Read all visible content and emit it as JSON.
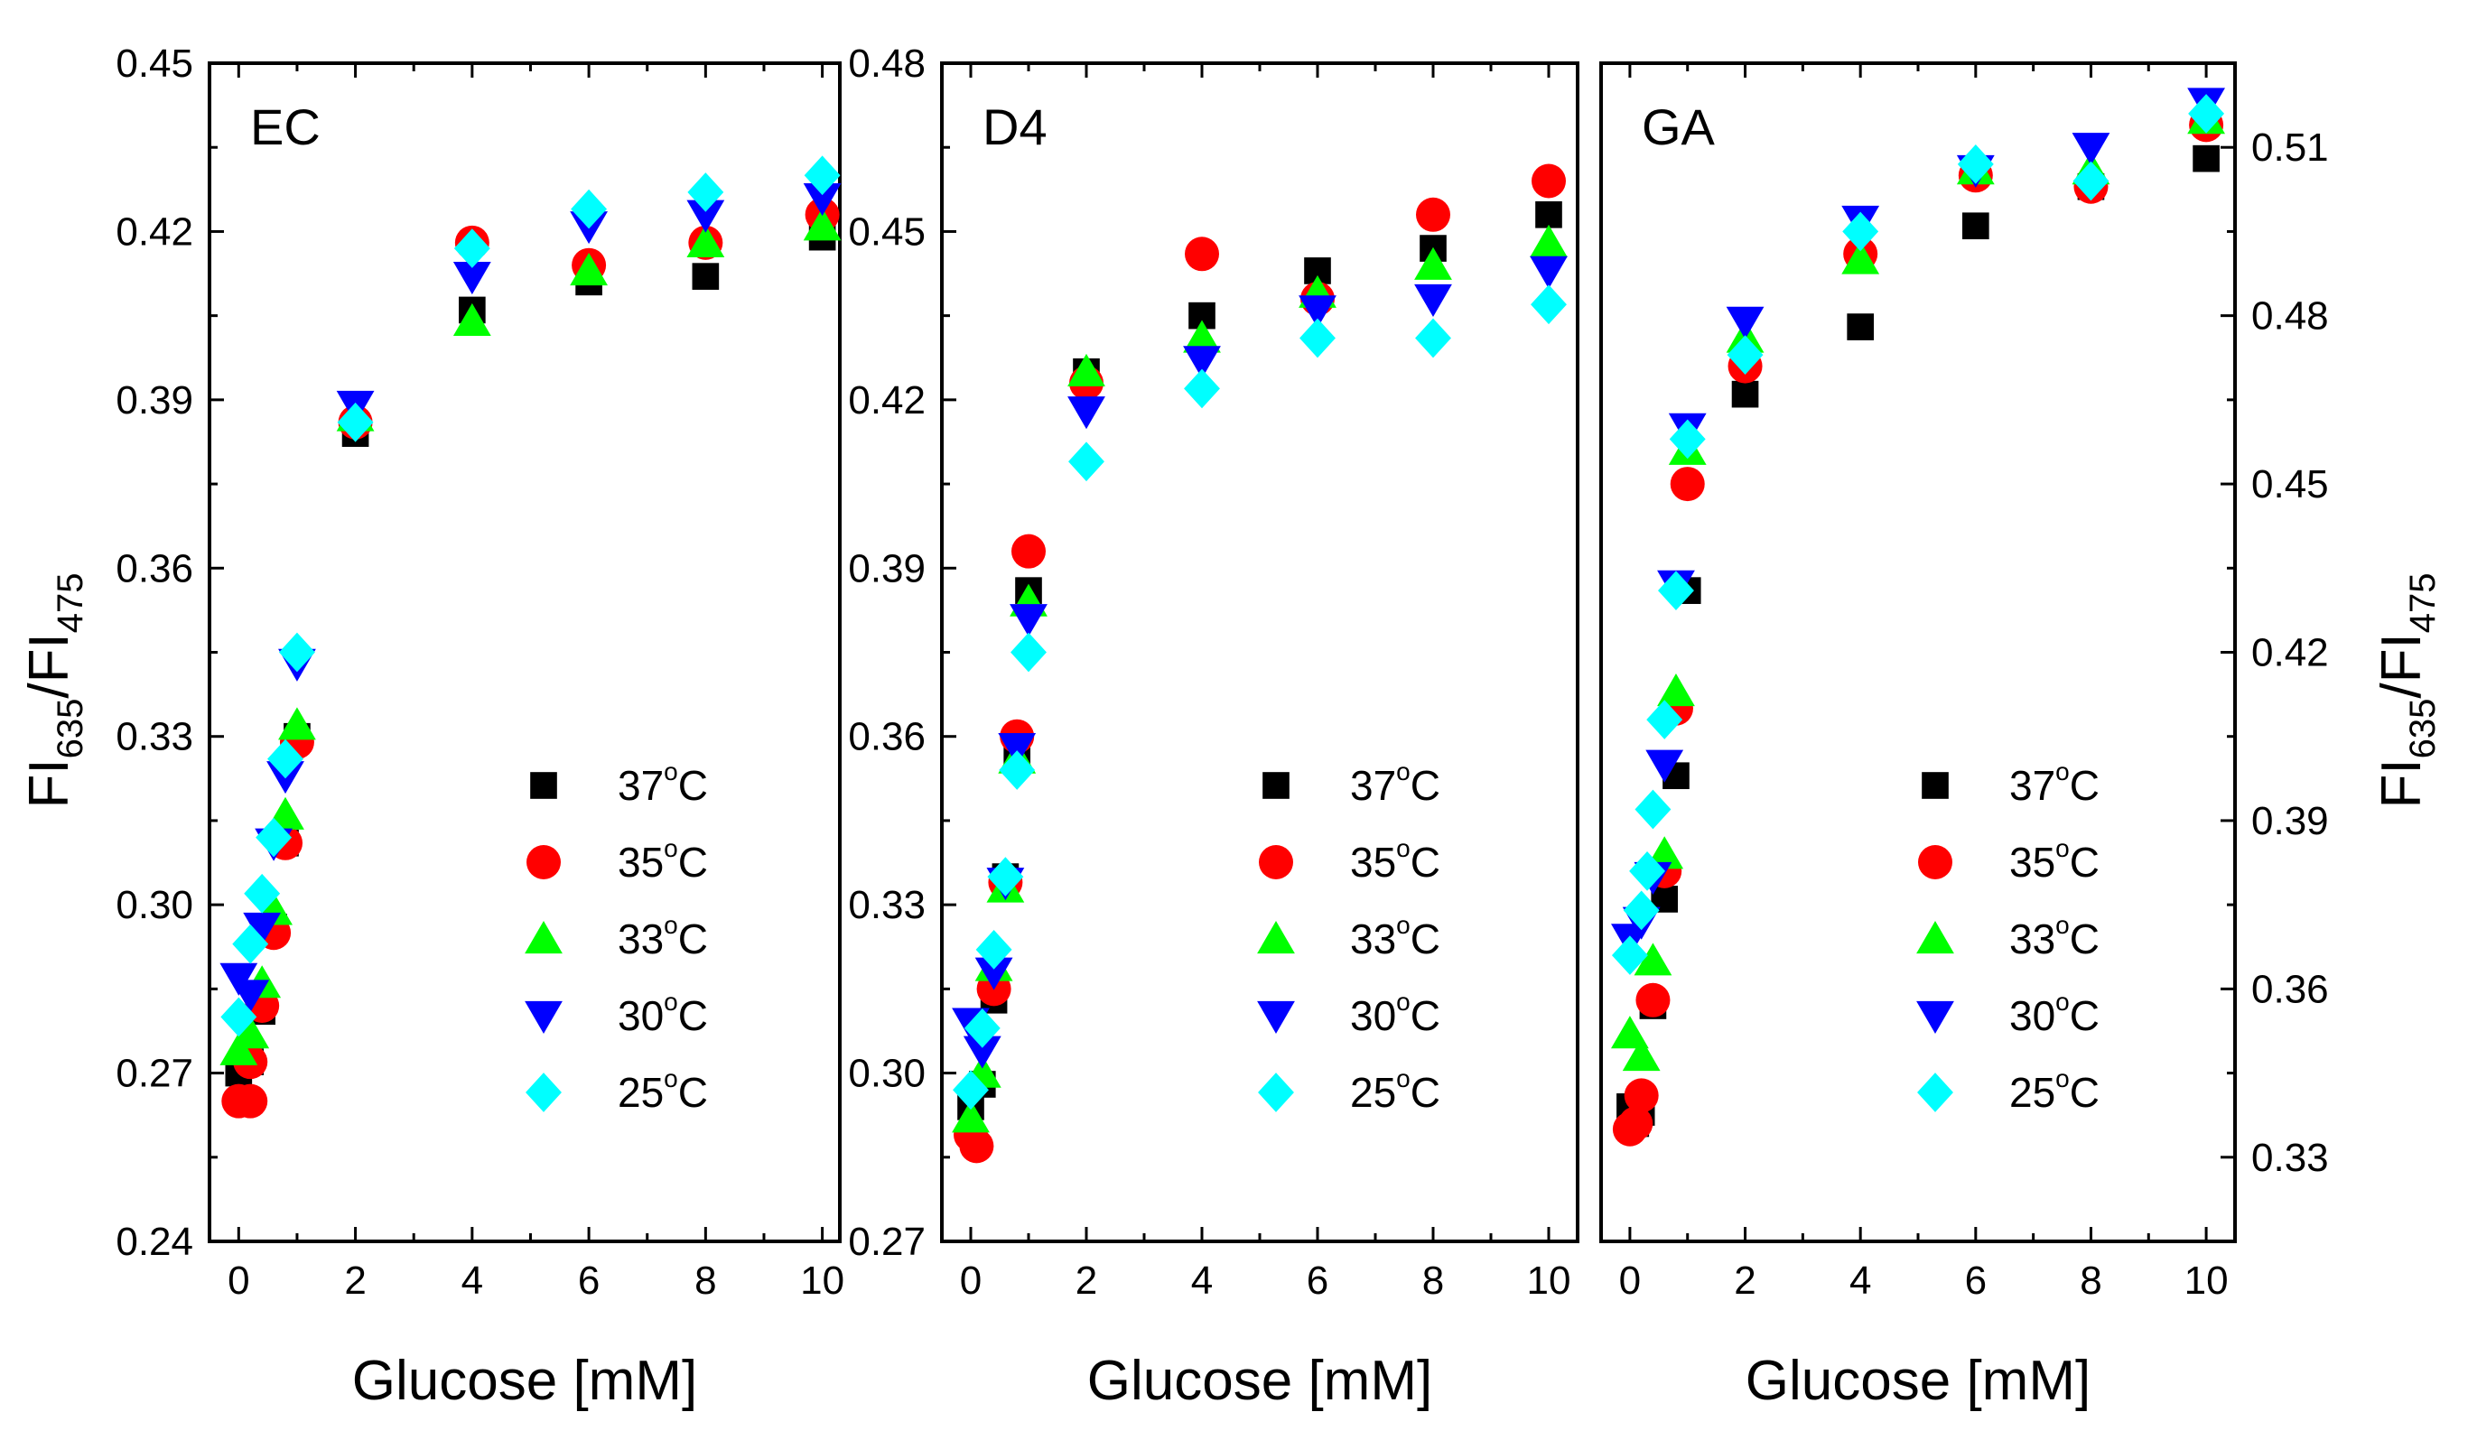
{
  "figure": {
    "xlabel": "Glucose [mM]",
    "ylabel": {
      "main": "FI",
      "sub1": "635",
      "slash": "/FI",
      "sub2": "475"
    }
  },
  "series_styles": [
    {
      "name": "37°C",
      "label_main": "37",
      "label_deg": "o",
      "label_unit": "C",
      "marker": "square",
      "color": "#000000"
    },
    {
      "name": "35°C",
      "label_main": "35",
      "label_deg": "o",
      "label_unit": "C",
      "marker": "circle",
      "color": "#ff0000"
    },
    {
      "name": "33°C",
      "label_main": "33",
      "label_deg": "o",
      "label_unit": "C",
      "marker": "triangle-up",
      "color": "#00ff00"
    },
    {
      "name": "30°C",
      "label_main": "30",
      "label_deg": "o",
      "label_unit": "C",
      "marker": "triangle-down",
      "color": "#0000ff"
    },
    {
      "name": "25°C",
      "label_main": "25",
      "label_deg": "o",
      "label_unit": "C",
      "marker": "diamond",
      "color": "#00ffff"
    }
  ],
  "chart_data": [
    {
      "type": "scatter",
      "title": "EC",
      "xlabel": "Glucose [mM]",
      "ylabel": "FI635/FI475",
      "xlim": [
        -0.5,
        10.3
      ],
      "ylim": [
        0.24,
        0.45
      ],
      "xticks": [
        0,
        2,
        4,
        6,
        8,
        10
      ],
      "xtick_labels": [
        "0",
        "2",
        "4",
        "6",
        "8",
        "10"
      ],
      "yticks": [
        0.24,
        0.27,
        0.3,
        0.33,
        0.36,
        0.39,
        0.42,
        0.45
      ],
      "ytick_labels": [
        "0.24",
        "0.27",
        "0.30",
        "0.33",
        "0.36",
        "0.39",
        "0.42",
        "0.45"
      ],
      "ytick_side": "left",
      "legend_position": "center-right",
      "series": [
        {
          "name": "37°C",
          "points": [
            [
              0,
              0.27
            ],
            [
              0.2,
              0.272
            ],
            [
              0.4,
              0.281
            ],
            [
              0.6,
              0.296
            ],
            [
              0.8,
              0.311
            ],
            [
              1,
              0.33
            ],
            [
              2,
              0.384
            ],
            [
              4,
              0.406
            ],
            [
              6,
              0.411
            ],
            [
              8,
              0.412
            ],
            [
              10,
              0.419
            ]
          ]
        },
        {
          "name": "35°C",
          "points": [
            [
              0,
              0.265
            ],
            [
              0.2,
              0.265
            ],
            [
              0.2,
              0.272
            ],
            [
              0.4,
              0.282
            ],
            [
              0.6,
              0.295
            ],
            [
              0.8,
              0.311
            ],
            [
              1,
              0.329
            ],
            [
              2,
              0.386
            ],
            [
              4,
              0.418
            ],
            [
              6,
              0.414
            ],
            [
              8,
              0.418
            ],
            [
              10,
              0.423
            ]
          ]
        },
        {
          "name": "33°C",
          "points": [
            [
              0,
              0.274
            ],
            [
              0.2,
              0.277
            ],
            [
              0.4,
              0.286
            ],
            [
              0.6,
              0.299
            ],
            [
              0.8,
              0.316
            ],
            [
              1,
              0.332
            ],
            [
              2,
              0.387
            ],
            [
              4,
              0.404
            ],
            [
              6,
              0.413
            ],
            [
              8,
              0.418
            ],
            [
              10,
              0.421
            ]
          ]
        },
        {
          "name": "30°C",
          "points": [
            [
              0,
              0.287
            ],
            [
              0.2,
              0.284
            ],
            [
              0.4,
              0.296
            ],
            [
              0.6,
              0.311
            ],
            [
              0.8,
              0.323
            ],
            [
              1,
              0.343
            ],
            [
              2,
              0.389
            ],
            [
              4,
              0.412
            ],
            [
              6,
              0.421
            ],
            [
              8,
              0.423
            ],
            [
              10,
              0.426
            ]
          ]
        },
        {
          "name": "25°C",
          "points": [
            [
              0,
              0.28
            ],
            [
              0.2,
              0.293
            ],
            [
              0.4,
              0.302
            ],
            [
              0.6,
              0.312
            ],
            [
              0.8,
              0.326
            ],
            [
              1,
              0.345
            ],
            [
              2,
              0.386
            ],
            [
              4,
              0.417
            ],
            [
              6,
              0.424
            ],
            [
              8,
              0.427
            ],
            [
              10,
              0.43
            ]
          ]
        }
      ]
    },
    {
      "type": "scatter",
      "title": "D4",
      "xlabel": "Glucose [mM]",
      "ylabel": "FI635/FI475",
      "xlim": [
        -0.5,
        10.5
      ],
      "ylim": [
        0.27,
        0.48
      ],
      "xticks": [
        0,
        2,
        4,
        6,
        8,
        10
      ],
      "xtick_labels": [
        "0",
        "2",
        "4",
        "6",
        "8",
        "10"
      ],
      "yticks": [
        0.27,
        0.3,
        0.33,
        0.36,
        0.39,
        0.42,
        0.45,
        0.48
      ],
      "ytick_labels": [
        "0.27",
        "0.30",
        "0.33",
        "0.36",
        "0.39",
        "0.42",
        "0.45",
        "0.48"
      ],
      "ytick_side": "left",
      "legend_position": "center-right",
      "series": [
        {
          "name": "37°C",
          "points": [
            [
              0,
              0.294
            ],
            [
              0.2,
              0.298
            ],
            [
              0.4,
              0.313
            ],
            [
              0.6,
              0.335
            ],
            [
              0.8,
              0.356
            ],
            [
              1,
              0.386
            ],
            [
              2,
              0.425
            ],
            [
              4,
              0.435
            ],
            [
              6,
              0.443
            ],
            [
              8,
              0.447
            ],
            [
              10,
              0.453
            ]
          ]
        },
        {
          "name": "35°C",
          "points": [
            [
              0,
              0.289
            ],
            [
              0.1,
              0.287
            ],
            [
              0.4,
              0.315
            ],
            [
              0.6,
              0.334
            ],
            [
              0.8,
              0.36
            ],
            [
              1,
              0.393
            ],
            [
              2,
              0.423
            ],
            [
              4,
              0.446
            ],
            [
              6,
              0.438
            ],
            [
              8,
              0.453
            ],
            [
              10,
              0.459
            ]
          ]
        },
        {
          "name": "33°C",
          "points": [
            [
              0,
              0.292
            ],
            [
              0.2,
              0.3
            ],
            [
              0.4,
              0.319
            ],
            [
              0.6,
              0.333
            ],
            [
              0.8,
              0.356
            ],
            [
              1,
              0.384
            ],
            [
              2,
              0.425
            ],
            [
              4,
              0.431
            ],
            [
              6,
              0.439
            ],
            [
              8,
              0.444
            ],
            [
              10,
              0.448
            ]
          ]
        },
        {
          "name": "30°C",
          "points": [
            [
              0,
              0.309
            ],
            [
              0.2,
              0.304
            ],
            [
              0.4,
              0.318
            ],
            [
              0.6,
              0.334
            ],
            [
              0.8,
              0.358
            ],
            [
              1,
              0.381
            ],
            [
              2,
              0.418
            ],
            [
              4,
              0.427
            ],
            [
              6,
              0.436
            ],
            [
              8,
              0.438
            ],
            [
              10,
              0.443
            ]
          ]
        },
        {
          "name": "25°C",
          "points": [
            [
              0,
              0.297
            ],
            [
              0.2,
              0.308
            ],
            [
              0.4,
              0.322
            ],
            [
              0.6,
              0.335
            ],
            [
              0.8,
              0.354
            ],
            [
              1,
              0.375
            ],
            [
              2,
              0.409
            ],
            [
              4,
              0.422
            ],
            [
              6,
              0.431
            ],
            [
              8,
              0.431
            ],
            [
              10,
              0.437
            ]
          ]
        }
      ]
    },
    {
      "type": "scatter",
      "title": "GA",
      "xlabel": "Glucose [mM]",
      "ylabel": "FI635/FI475",
      "xlim": [
        -0.5,
        10.5
      ],
      "ylim": [
        0.315,
        0.525
      ],
      "xticks": [
        0,
        2,
        4,
        6,
        8,
        10
      ],
      "xtick_labels": [
        "0",
        "2",
        "4",
        "6",
        "8",
        "10"
      ],
      "yticks": [
        0.33,
        0.36,
        0.39,
        0.42,
        0.45,
        0.48,
        0.51
      ],
      "ytick_labels": [
        "0.33",
        "0.36",
        "0.39",
        "0.42",
        "0.45",
        "0.48",
        "0.51"
      ],
      "ytick_side": "right",
      "legend_position": "center-right",
      "series": [
        {
          "name": "37°C",
          "points": [
            [
              0,
              0.339
            ],
            [
              0.1,
              0.336
            ],
            [
              0.2,
              0.338
            ],
            [
              0.4,
              0.357
            ],
            [
              0.6,
              0.376
            ],
            [
              0.8,
              0.398
            ],
            [
              1,
              0.431
            ],
            [
              2,
              0.466
            ],
            [
              4,
              0.478
            ],
            [
              6,
              0.496
            ],
            [
              8,
              0.503
            ],
            [
              10,
              0.508
            ]
          ]
        },
        {
          "name": "35°C",
          "points": [
            [
              0,
              0.335
            ],
            [
              0.1,
              0.336
            ],
            [
              0.2,
              0.341
            ],
            [
              0.4,
              0.358
            ],
            [
              0.6,
              0.381
            ],
            [
              0.8,
              0.41
            ],
            [
              1,
              0.45
            ],
            [
              2,
              0.471
            ],
            [
              4,
              0.491
            ],
            [
              6,
              0.505
            ],
            [
              8,
              0.503
            ],
            [
              10,
              0.514
            ]
          ]
        },
        {
          "name": "33°C",
          "points": [
            [
              0,
              0.352
            ],
            [
              0.2,
              0.348
            ],
            [
              0.4,
              0.365
            ],
            [
              0.6,
              0.384
            ],
            [
              0.8,
              0.413
            ],
            [
              1,
              0.456
            ],
            [
              2,
              0.476
            ],
            [
              4,
              0.49
            ],
            [
              6,
              0.506
            ],
            [
              8,
              0.506
            ],
            [
              10,
              0.515
            ]
          ]
        },
        {
          "name": "30°C",
          "points": [
            [
              0,
              0.369
            ],
            [
              0.2,
              0.372
            ],
            [
              0.4,
              0.38
            ],
            [
              0.6,
              0.4
            ],
            [
              0.8,
              0.432
            ],
            [
              1,
              0.46
            ],
            [
              2,
              0.479
            ],
            [
              4,
              0.497
            ],
            [
              6,
              0.506
            ],
            [
              8,
              0.51
            ],
            [
              10,
              0.518
            ]
          ]
        },
        {
          "name": "25°C",
          "points": [
            [
              0,
              0.366
            ],
            [
              0.2,
              0.374
            ],
            [
              0.3,
              0.381
            ],
            [
              0.4,
              0.392
            ],
            [
              0.6,
              0.408
            ],
            [
              0.8,
              0.431
            ],
            [
              1,
              0.458
            ],
            [
              2,
              0.473
            ],
            [
              4,
              0.495
            ],
            [
              6,
              0.507
            ],
            [
              8,
              0.504
            ],
            [
              10,
              0.516
            ]
          ]
        }
      ]
    }
  ]
}
